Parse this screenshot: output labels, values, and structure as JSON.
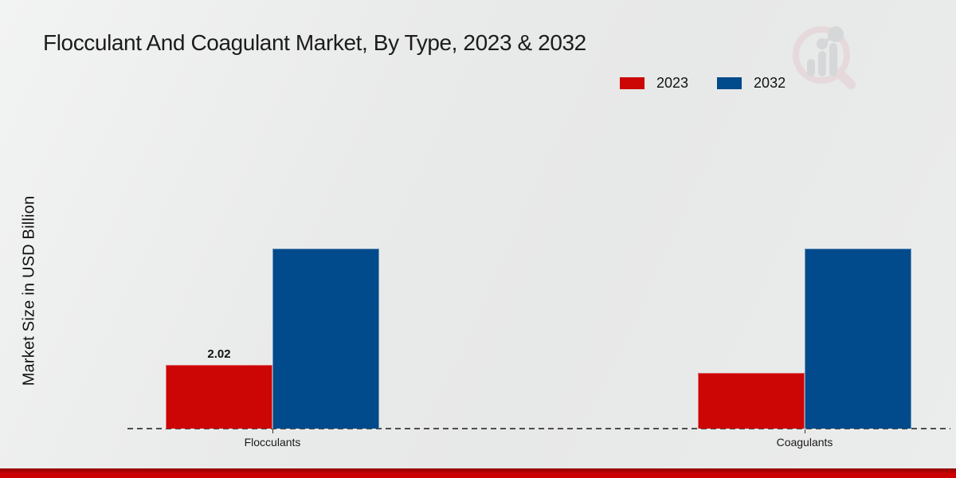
{
  "title": "Flocculant And Coagulant Market, By Type, 2023 & 2032",
  "ylabel": "Market Size in USD Billion",
  "legend": [
    {
      "label": "2023",
      "color": "#cc0505"
    },
    {
      "label": "2032",
      "color": "#014a8b"
    }
  ],
  "chart_data": {
    "type": "bar",
    "title": "Flocculant And Coagulant Market, By Type, 2023 & 2032",
    "categories": [
      "Flocculants",
      "Coagulants"
    ],
    "series": [
      {
        "name": "2023",
        "color": "#cc0505",
        "values": [
          2.02,
          1.77
        ]
      },
      {
        "name": "2032",
        "color": "#014a8b",
        "values": [
          5.71,
          5.72
        ]
      }
    ],
    "data_labels": [
      {
        "category": "Flocculants",
        "series": "2023",
        "text": "2.02"
      }
    ],
    "xlabel": "",
    "ylabel": "Market Size in USD Billion",
    "ylim": [
      0,
      8
    ],
    "grid": false,
    "legend_position": "top-right",
    "baseline_style": "dashed"
  },
  "watermark": {
    "icon": "market-research-future-logo"
  },
  "footer": {
    "accent_color": "#cb0101"
  }
}
